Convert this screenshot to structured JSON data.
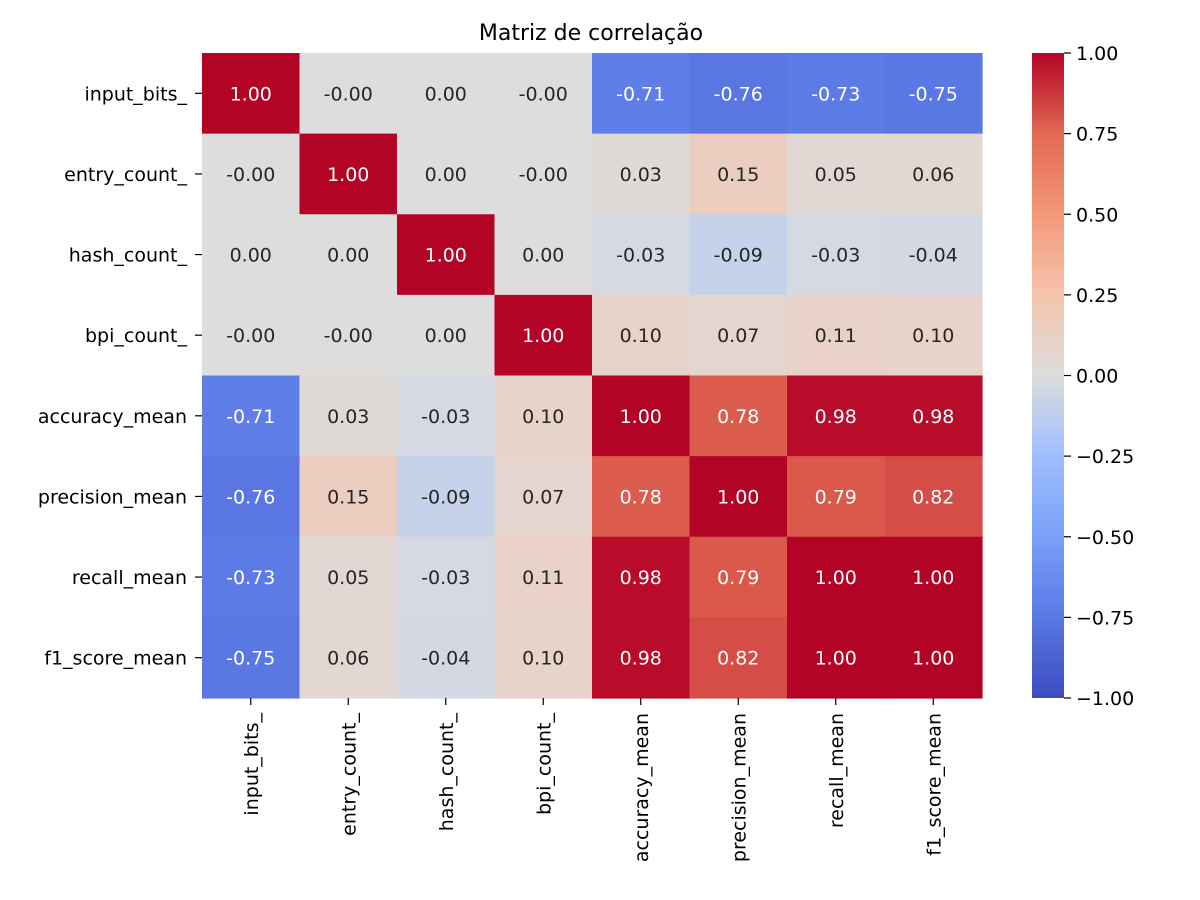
{
  "chart_data": {
    "type": "heatmap",
    "title": "Matriz de correlação",
    "xlabel": "",
    "ylabel": "",
    "row_labels": [
      "input_bits_",
      "entry_count_",
      "hash_count_",
      "bpi_count_",
      "accuracy_mean",
      "precision_mean",
      "recall_mean",
      "f1_score_mean"
    ],
    "column_labels": [
      "input_bits_",
      "entry_count_",
      "hash_count_",
      "bpi_count_",
      "accuracy_mean",
      "precision_mean",
      "recall_mean",
      "f1_score_mean"
    ],
    "values": [
      [
        1.0,
        -0.0,
        0.0,
        -0.0,
        -0.71,
        -0.76,
        -0.73,
        -0.75
      ],
      [
        -0.0,
        1.0,
        0.0,
        -0.0,
        0.03,
        0.15,
        0.05,
        0.06
      ],
      [
        0.0,
        0.0,
        1.0,
        0.0,
        -0.03,
        -0.09,
        -0.03,
        -0.04
      ],
      [
        -0.0,
        -0.0,
        0.0,
        1.0,
        0.1,
        0.07,
        0.11,
        0.1
      ],
      [
        -0.71,
        0.03,
        -0.03,
        0.1,
        1.0,
        0.78,
        0.98,
        0.98
      ],
      [
        -0.76,
        0.15,
        -0.09,
        0.07,
        0.78,
        1.0,
        0.79,
        0.82
      ],
      [
        -0.73,
        0.05,
        -0.03,
        0.11,
        0.98,
        0.79,
        1.0,
        1.0
      ],
      [
        -0.75,
        0.06,
        -0.04,
        0.1,
        0.98,
        0.82,
        1.0,
        1.0
      ]
    ],
    "cell_labels": [
      [
        "1.00",
        "-0.00",
        "0.00",
        "-0.00",
        "-0.71",
        "-0.76",
        "-0.73",
        "-0.75"
      ],
      [
        "-0.00",
        "1.00",
        "0.00",
        "-0.00",
        "0.03",
        "0.15",
        "0.05",
        "0.06"
      ],
      [
        "0.00",
        "0.00",
        "1.00",
        "0.00",
        "-0.03",
        "-0.09",
        "-0.03",
        "-0.04"
      ],
      [
        "-0.00",
        "-0.00",
        "0.00",
        "1.00",
        "0.10",
        "0.07",
        "0.11",
        "0.10"
      ],
      [
        "-0.71",
        "0.03",
        "-0.03",
        "0.10",
        "1.00",
        "0.78",
        "0.98",
        "0.98"
      ],
      [
        "-0.76",
        "0.15",
        "-0.09",
        "0.07",
        "0.78",
        "1.00",
        "0.79",
        "0.82"
      ],
      [
        "-0.73",
        "0.05",
        "-0.03",
        "0.11",
        "0.98",
        "0.79",
        "1.00",
        "1.00"
      ],
      [
        "-0.75",
        "0.06",
        "-0.04",
        "0.10",
        "0.98",
        "0.82",
        "1.00",
        "1.00"
      ]
    ],
    "colormap": "coolwarm",
    "vmin": -1.0,
    "vmax": 1.0,
    "colorbar_ticks": [
      1.0,
      0.75,
      0.5,
      0.25,
      0.0,
      -0.25,
      -0.5,
      -0.75,
      -1.0
    ],
    "colorbar_tick_labels": [
      "1.00",
      "0.75",
      "0.50",
      "0.25",
      "0.00",
      "−0.25",
      "−0.50",
      "−0.75",
      "−1.00"
    ],
    "colorbar_position": "right",
    "grid": false,
    "colors": {
      "coolwarm_low": "#3b4cc0",
      "coolwarm_mid": "#dddddd",
      "coolwarm_high": "#b40426",
      "dark_text": "#262626",
      "light_text": "#ffffff"
    }
  }
}
